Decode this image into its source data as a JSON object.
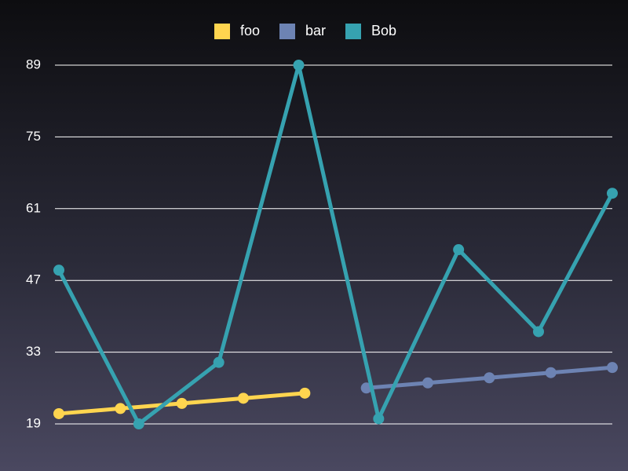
{
  "chart_data": {
    "type": "line",
    "legend_position": "top-center",
    "grid": true,
    "ylim": [
      19,
      89
    ],
    "yticks": [
      19,
      33,
      47,
      61,
      75,
      89
    ],
    "series": [
      {
        "name": "foo",
        "color": "#ffd54f",
        "points": [
          [
            0,
            21
          ],
          [
            1,
            22
          ],
          [
            2,
            23
          ],
          [
            3,
            24
          ],
          [
            4,
            25
          ]
        ]
      },
      {
        "name": "bar",
        "color": "#6d83b3",
        "points": [
          [
            5,
            26
          ],
          [
            6,
            27
          ],
          [
            7,
            28
          ],
          [
            8,
            29
          ],
          [
            9,
            30
          ]
        ]
      },
      {
        "name": "Bob",
        "color": "#36a2b0",
        "points": [
          [
            0,
            49
          ],
          [
            1.3,
            19
          ],
          [
            2.6,
            31
          ],
          [
            3.9,
            89
          ],
          [
            5.2,
            20
          ],
          [
            6.5,
            53
          ],
          [
            7.8,
            37
          ],
          [
            9.0,
            64
          ]
        ]
      }
    ]
  }
}
